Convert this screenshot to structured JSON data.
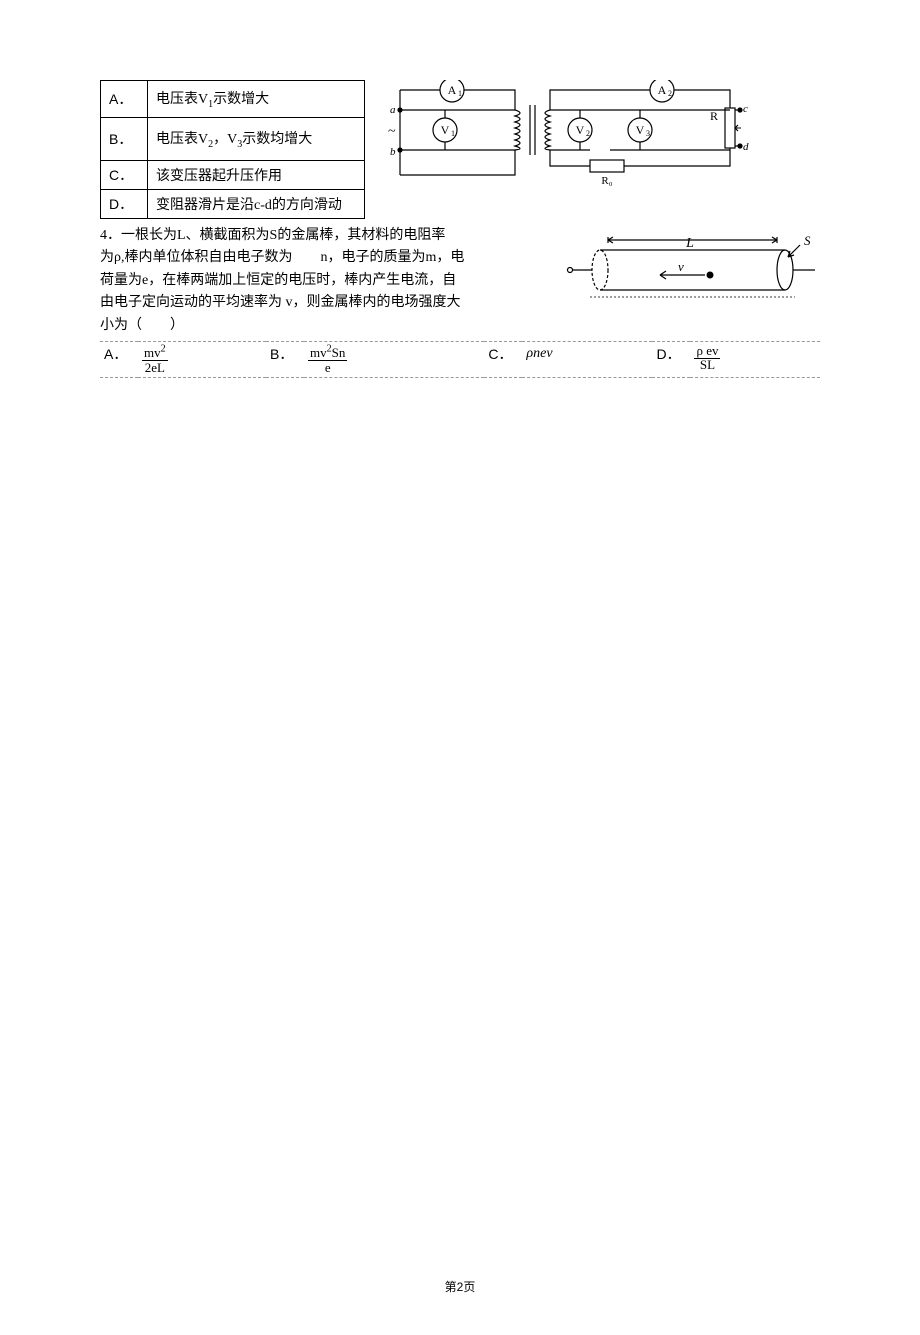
{
  "q3": {
    "options": [
      {
        "label": "A．",
        "html": "电压表V<sub class='sub'>1</sub>示数增大"
      },
      {
        "label": "B．",
        "html": "电压表V<sub class='sub'>2</sub>，V<sub class='sub'>3</sub>示数均增大"
      },
      {
        "label": "C．",
        "text": "该变压器起升压作用"
      },
      {
        "label": "D．",
        "text": "变阻器滑片是沿c-d的方向滑动"
      }
    ],
    "circuit": {
      "meters": [
        "A1",
        "V1",
        "A2",
        "V2",
        "V3"
      ],
      "terminals_left": [
        "a",
        "b"
      ],
      "terminals_right": [
        "c",
        "d"
      ],
      "components": [
        "R0",
        "R"
      ],
      "tilde": "~"
    }
  },
  "q4": {
    "stem_lines": [
      "4．一根长为L、横截面积为S的金属棒，其材料的电阻率",
      "为ρ,棒内单位体积自由电子数为　　n，电子的质量为m，电",
      "荷量为e，在棒两端加上恒定的电压时，棒内产生电流，自",
      "由电子定向运动的平均速率为  v，则金属棒内的电场强度大",
      "小为（　　）"
    ],
    "fig": {
      "L": "L",
      "S": "S",
      "v": "v"
    },
    "answers": {
      "A": {
        "num": "mv<sup class='sup'>2</sup>",
        "den": "2eL"
      },
      "B": {
        "num": "mv<sup class='sup'>2</sup>Sn",
        "den": "e"
      },
      "C": {
        "text": "ρnev"
      },
      "D": {
        "num": "ρ ev",
        "den": "SL"
      }
    }
  },
  "pageno": "第2页"
}
